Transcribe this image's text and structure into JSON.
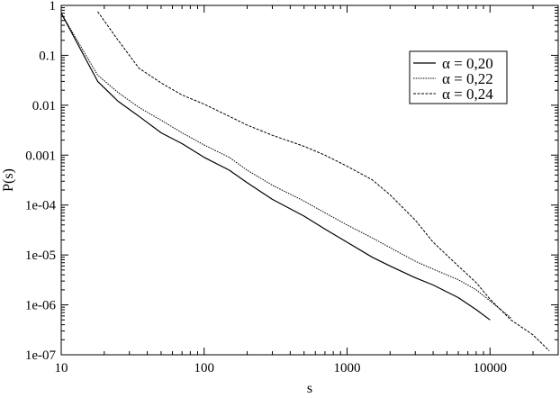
{
  "chart_data": {
    "type": "line",
    "x_scale": "log",
    "y_scale": "log",
    "xlabel": "s",
    "ylabel": "P(s)",
    "xlim": [
      10,
      30000
    ],
    "ylim": [
      1e-07,
      1
    ],
    "x_ticks": [
      {
        "value": 10,
        "label": "10"
      },
      {
        "value": 100,
        "label": "100"
      },
      {
        "value": 1000,
        "label": "1000"
      },
      {
        "value": 10000,
        "label": "10000"
      }
    ],
    "y_ticks": [
      {
        "value": 1,
        "label": "1"
      },
      {
        "value": 0.1,
        "label": "0.1"
      },
      {
        "value": 0.01,
        "label": "0.01"
      },
      {
        "value": 0.001,
        "label": "0.001"
      },
      {
        "value": 0.0001,
        "label": "1e-04"
      },
      {
        "value": 1e-05,
        "label": "1e-05"
      },
      {
        "value": 1e-06,
        "label": "1e-06"
      },
      {
        "value": 1e-07,
        "label": "1e-07"
      }
    ],
    "grid": false,
    "legend_position": "top-right",
    "series": [
      {
        "name": "α = 0,20",
        "style": "solid",
        "points": [
          [
            10,
            0.7
          ],
          [
            18,
            0.03
          ],
          [
            25,
            0.012
          ],
          [
            35,
            0.006
          ],
          [
            50,
            0.0028
          ],
          [
            70,
            0.0017
          ],
          [
            100,
            0.0009
          ],
          [
            150,
            0.0005
          ],
          [
            200,
            0.00028
          ],
          [
            300,
            0.00013
          ],
          [
            500,
            6e-05
          ],
          [
            700,
            3.3e-05
          ],
          [
            1000,
            1.8e-05
          ],
          [
            1500,
            9e-06
          ],
          [
            2000,
            6e-06
          ],
          [
            3000,
            3.5e-06
          ],
          [
            4000,
            2.5e-06
          ],
          [
            6000,
            1.4e-06
          ],
          [
            8000,
            8e-07
          ],
          [
            10000,
            5e-07
          ]
        ]
      },
      {
        "name": "α = 0,22",
        "style": "dotted",
        "points": [
          [
            10,
            0.7
          ],
          [
            18,
            0.04
          ],
          [
            25,
            0.018
          ],
          [
            35,
            0.009
          ],
          [
            50,
            0.005
          ],
          [
            70,
            0.0028
          ],
          [
            100,
            0.0016
          ],
          [
            150,
            0.0009
          ],
          [
            200,
            0.0005
          ],
          [
            300,
            0.00025
          ],
          [
            500,
            0.00012
          ],
          [
            700,
            7e-05
          ],
          [
            1000,
            4e-05
          ],
          [
            1500,
            2.2e-05
          ],
          [
            2000,
            1.4e-05
          ],
          [
            3000,
            7.5e-06
          ],
          [
            4000,
            5.2e-06
          ],
          [
            6000,
            3.2e-06
          ],
          [
            8000,
            2e-06
          ],
          [
            10000,
            1.2e-06
          ],
          [
            14000,
            5.5e-07
          ]
        ]
      },
      {
        "name": "α = 0,24",
        "style": "dashed",
        "points": [
          [
            18,
            0.75
          ],
          [
            25,
            0.2
          ],
          [
            35,
            0.055
          ],
          [
            50,
            0.028
          ],
          [
            70,
            0.016
          ],
          [
            100,
            0.0105
          ],
          [
            150,
            0.006
          ],
          [
            200,
            0.004
          ],
          [
            300,
            0.0025
          ],
          [
            500,
            0.0015
          ],
          [
            700,
            0.001
          ],
          [
            1000,
            0.0006
          ],
          [
            1500,
            0.00032
          ],
          [
            2000,
            0.00016
          ],
          [
            3000,
            5e-05
          ],
          [
            4000,
            1.8e-05
          ],
          [
            6000,
            6e-06
          ],
          [
            8000,
            2.8e-06
          ],
          [
            10000,
            1.3e-06
          ],
          [
            14000,
            5e-07
          ],
          [
            20000,
            2.5e-07
          ],
          [
            26000,
            1.2e-07
          ]
        ]
      }
    ]
  }
}
